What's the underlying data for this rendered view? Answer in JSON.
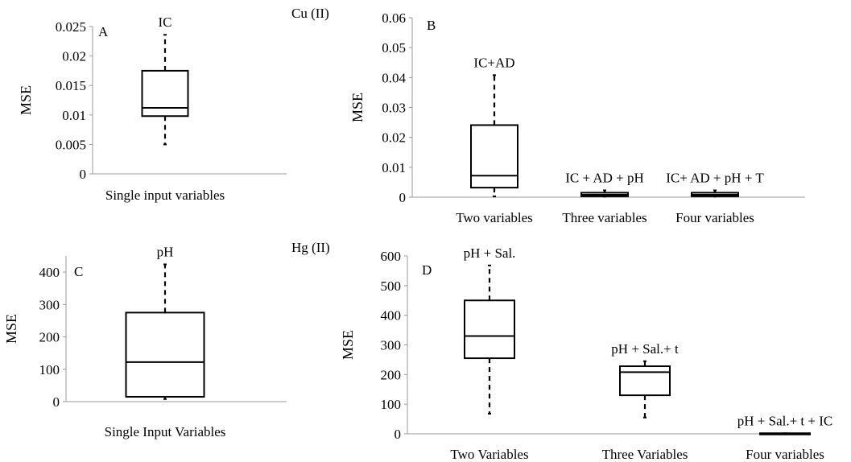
{
  "metal_labels": {
    "cu": "Cu (II)",
    "hg": "Hg (II)"
  },
  "chart_data": [
    {
      "id": "A",
      "panel_letter": "A",
      "type": "box",
      "ylabel": "MSE",
      "ylim": [
        0,
        0.025
      ],
      "yticks": [
        "0",
        "0.005",
        "0.01",
        "0.015",
        "0.02",
        "0.025"
      ],
      "categories": [
        "Single input variables"
      ],
      "boxes": [
        {
          "category": "Single input variables",
          "label": "IC",
          "min": 0.005,
          "q1": 0.0098,
          "median": 0.0112,
          "q3": 0.0175,
          "max": 0.0236
        }
      ]
    },
    {
      "id": "B",
      "panel_letter": "B",
      "type": "box",
      "ylabel": "MSE",
      "ylim": [
        0,
        0.06
      ],
      "yticks": [
        "0",
        "0.01",
        "0.02",
        "0.03",
        "0.04",
        "0.05",
        "0.06"
      ],
      "categories": [
        "Two variables",
        "Three variables",
        "Four variables"
      ],
      "boxes": [
        {
          "category": "Two variables",
          "label": "IC+AD",
          "min": 0.0003,
          "q1": 0.0032,
          "median": 0.0072,
          "q3": 0.0241,
          "max": 0.0408
        },
        {
          "category": "Three variables",
          "label": "IC + AD + pH",
          "min": 0.0002,
          "q1": 0.0003,
          "median": 0.0008,
          "q3": 0.0015,
          "max": 0.0023
        },
        {
          "category": "Four variables",
          "label": "IC+ AD + pH + T",
          "min": 0.0002,
          "q1": 0.0003,
          "median": 0.0008,
          "q3": 0.0015,
          "max": 0.0023
        }
      ]
    },
    {
      "id": "C",
      "panel_letter": "C",
      "type": "box",
      "ylabel": "MSE",
      "ylim": [
        0,
        450
      ],
      "yticks": [
        "0",
        "100",
        "200",
        "300",
        "400"
      ],
      "categories": [
        "Single Input Variables"
      ],
      "boxes": [
        {
          "category": "Single Input Variables",
          "label": "pH",
          "min": 8,
          "q1": 15,
          "median": 122,
          "q3": 275,
          "max": 424
        }
      ]
    },
    {
      "id": "D",
      "panel_letter": "D",
      "type": "box",
      "ylabel": "MSE",
      "ylim": [
        0,
        600
      ],
      "yticks": [
        "0",
        "100",
        "200",
        "300",
        "400",
        "500",
        "600"
      ],
      "categories": [
        "Two Variables",
        "Three Variables",
        "Four variables"
      ],
      "boxes": [
        {
          "category": "Two Variables",
          "label": "pH + Sal.",
          "min": 68,
          "q1": 255,
          "median": 330,
          "q3": 450,
          "max": 568
        },
        {
          "category": "Three Variables",
          "label": "pH + Sal.+ t",
          "min": 55,
          "q1": 130,
          "median": 208,
          "q3": 228,
          "max": 245
        },
        {
          "category": "Four variables",
          "label": "pH + Sal.+ t + IC",
          "min": 1,
          "q1": 1,
          "median": 1,
          "q3": 2,
          "max": 2
        }
      ]
    }
  ]
}
